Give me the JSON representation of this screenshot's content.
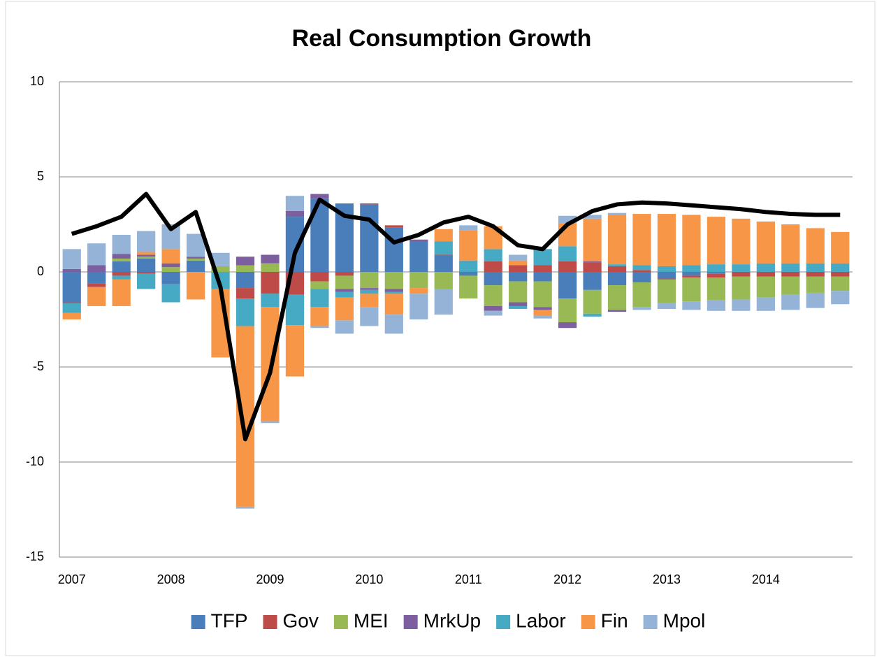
{
  "chart_data": {
    "type": "bar",
    "stacked": true,
    "title": "Real Consumption Growth",
    "categories": [
      "2007",
      null,
      null,
      null,
      "2008",
      null,
      null,
      null,
      "2009",
      null,
      null,
      null,
      "2010",
      null,
      null,
      null,
      "2011",
      null,
      null,
      null,
      "2012",
      null,
      null,
      null,
      "2013",
      null,
      null,
      null,
      "2014",
      null,
      null,
      null
    ],
    "series": [
      {
        "name": "TFP",
        "color": "#4a7ebb",
        "values": [
          -1.6,
          -0.6,
          0.55,
          0.7,
          -0.65,
          0.6,
          0,
          -0.85,
          0,
          2.9,
          3.85,
          3.6,
          3.55,
          2.35,
          1.6,
          0.85,
          -0.2,
          -0.7,
          -0.5,
          -0.5,
          -1.4,
          -0.95,
          -0.7,
          -0.55,
          -0.35,
          -0.2,
          -0.1,
          0,
          0,
          0,
          0,
          0
        ]
      },
      {
        "name": "Gov",
        "color": "#be4b48",
        "values": [
          -0.05,
          -0.2,
          -0.2,
          -0.1,
          0,
          0,
          0,
          -0.55,
          -1.15,
          -1.2,
          -0.5,
          -0.2,
          0.05,
          0.1,
          0,
          0.05,
          0,
          0.55,
          0.35,
          0.35,
          0.55,
          0.5,
          0.3,
          0.1,
          -0.05,
          -0.1,
          -0.2,
          -0.25,
          -0.25,
          -0.25,
          -0.25,
          -0.25
        ]
      },
      {
        "name": "MEI",
        "color": "#98b954",
        "values": [
          0,
          0,
          0.15,
          0.1,
          0.25,
          0.1,
          0.3,
          0.35,
          0.45,
          0,
          -0.4,
          -0.7,
          -0.85,
          -0.9,
          -0.85,
          -0.9,
          -1.2,
          -1.1,
          -1.1,
          -1.35,
          -1.25,
          -1.25,
          -1.3,
          -1.3,
          -1.25,
          -1.25,
          -1.2,
          -1.2,
          -1.1,
          -0.95,
          -0.85,
          -0.75
        ]
      },
      {
        "name": "MrkUp",
        "color": "#7d5fa0",
        "values": [
          0.15,
          0.35,
          0.25,
          0.1,
          0.2,
          0.1,
          0,
          0.45,
          0.45,
          0.3,
          0.25,
          -0.15,
          -0.1,
          -0.15,
          0.1,
          0,
          0,
          -0.25,
          -0.2,
          -0.15,
          -0.3,
          0.05,
          -0.1,
          0,
          0,
          0,
          0,
          0,
          0,
          0,
          0,
          0
        ]
      },
      {
        "name": "Labor",
        "color": "#46aac5",
        "values": [
          -0.5,
          0,
          -0.2,
          -0.8,
          -0.95,
          0,
          -0.9,
          -1.45,
          -0.7,
          -1.6,
          -0.95,
          -0.3,
          -0.2,
          -0.1,
          0,
          0.7,
          0.6,
          0.65,
          -0.15,
          0.85,
          0.8,
          -0.15,
          0.1,
          0.25,
          0.3,
          0.35,
          0.4,
          0.4,
          0.45,
          0.45,
          0.45,
          0.45
        ]
      },
      {
        "name": "Fin",
        "color": "#f79646",
        "values": [
          -0.35,
          -1.0,
          -1.4,
          0.15,
          0.75,
          -1.45,
          -3.6,
          -9.5,
          -6.0,
          -2.7,
          -1.0,
          -1.2,
          -0.7,
          -1.1,
          -0.3,
          0.65,
          1.6,
          1.2,
          0.25,
          -0.3,
          1.2,
          2.25,
          2.6,
          2.7,
          2.75,
          2.65,
          2.5,
          2.4,
          2.2,
          2.05,
          1.85,
          1.65
        ]
      },
      {
        "name": "Mpol",
        "color": "#95b3d7",
        "values": [
          1.05,
          1.15,
          1.0,
          1.1,
          1.3,
          1.2,
          0.7,
          -0.1,
          -0.1,
          0.8,
          -0.1,
          -0.7,
          -1.0,
          -1.0,
          -1.35,
          -1.35,
          0.25,
          -0.25,
          0.3,
          -0.15,
          0.4,
          0.2,
          0.1,
          -0.15,
          -0.3,
          -0.45,
          -0.55,
          -0.6,
          -0.7,
          -0.8,
          -0.8,
          -0.7
        ]
      }
    ],
    "line": {
      "color": "#000000",
      "values": [
        2.0,
        2.4,
        2.9,
        4.1,
        2.25,
        3.15,
        -0.8,
        -8.8,
        -5.3,
        1.0,
        3.8,
        2.95,
        2.75,
        1.55,
        1.95,
        2.6,
        2.9,
        2.4,
        1.4,
        1.2,
        2.5,
        3.2,
        3.55,
        3.65,
        3.6,
        3.5,
        3.4,
        3.3,
        3.15,
        3.05,
        3.0,
        3.0
      ]
    },
    "ylim": [
      -15,
      10
    ],
    "yticks": [
      -15,
      -10,
      -5,
      0,
      5,
      10
    ],
    "grid": true,
    "legend": "bottom"
  }
}
